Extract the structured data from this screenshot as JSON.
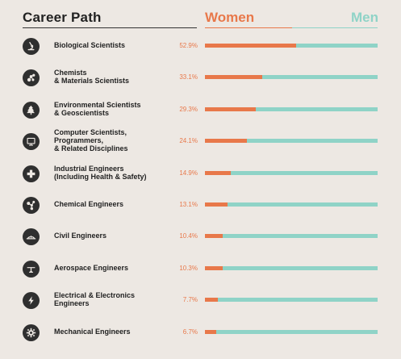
{
  "header": {
    "title": "Career Path"
  },
  "legend": {
    "women": "Women",
    "men": "Men"
  },
  "colors": {
    "women": "#e8784a",
    "men": "#8fd3c7",
    "icon": "#2f2f2f",
    "background": "#ede8e3"
  },
  "chart_data": {
    "type": "bar",
    "title": "Career Path",
    "xlabel": "",
    "ylabel": "",
    "xlim": [
      0,
      100
    ],
    "stacked": true,
    "orientation": "horizontal",
    "legend": "top-right",
    "categories": [
      "Biological Scientists",
      "Chemists & Materials Scientists",
      "Environmental Scientists & Geoscientists",
      "Computer Scientists, Programmers, & Related Disciplines",
      "Industrial Engineers (Including Health & Safety)",
      "Chemical Engineers",
      "Civil Engineers",
      "Aerospace Engineers",
      "Electrical & Electronics Engineers",
      "Mechanical Engineers"
    ],
    "series": [
      {
        "name": "Women",
        "values": [
          52.9,
          33.1,
          29.3,
          24.1,
          14.9,
          13.1,
          10.4,
          10.3,
          7.7,
          6.7
        ]
      },
      {
        "name": "Men",
        "values": [
          47.1,
          66.9,
          70.7,
          75.9,
          85.1,
          86.9,
          89.6,
          89.7,
          92.3,
          93.3
        ]
      }
    ]
  },
  "rows": [
    {
      "label_lines": [
        "Biological Scientists"
      ],
      "pct": "52.9%",
      "icon": "microscope-icon"
    },
    {
      "label_lines": [
        "Chemists",
        "& Materials Scientists"
      ],
      "pct": "33.1%",
      "icon": "molecule-icon"
    },
    {
      "label_lines": [
        "Environmental Scientists",
        "& Geoscientists"
      ],
      "pct": "29.3%",
      "icon": "tree-icon"
    },
    {
      "label_lines": [
        "Computer Scientists,",
        "Programmers,",
        "& Related Disciplines"
      ],
      "pct": "24.1%",
      "icon": "computer-icon"
    },
    {
      "label_lines": [
        "Industrial Engineers",
        "(Including Health & Safety)"
      ],
      "pct": "14.9%",
      "icon": "medical-cross-icon"
    },
    {
      "label_lines": [
        "Chemical Engineers"
      ],
      "pct": "13.1%",
      "icon": "flask-molecule-icon"
    },
    {
      "label_lines": [
        "Civil Engineers"
      ],
      "pct": "10.4%",
      "icon": "bridge-icon"
    },
    {
      "label_lines": [
        "Aerospace Engineers"
      ],
      "pct": "10.3%",
      "icon": "airplane-icon"
    },
    {
      "label_lines": [
        "Electrical & Electronics",
        "Engineers"
      ],
      "pct": "7.7%",
      "icon": "lightning-icon"
    },
    {
      "label_lines": [
        "Mechanical Engineers"
      ],
      "pct": "6.7%",
      "icon": "gear-icon"
    }
  ]
}
